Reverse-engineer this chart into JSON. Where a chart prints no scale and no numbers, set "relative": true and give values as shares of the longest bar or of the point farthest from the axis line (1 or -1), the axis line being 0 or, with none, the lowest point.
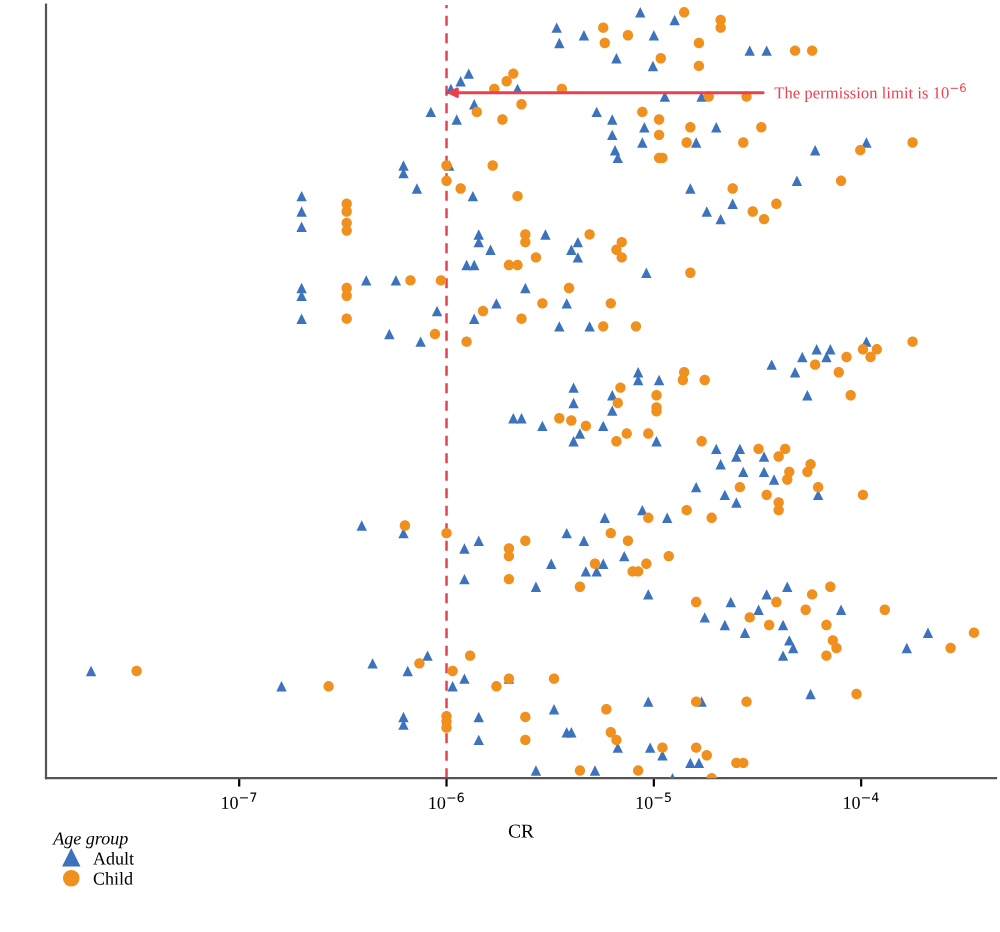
{
  "chart_data": {
    "type": "scatter",
    "xlabel": "CR",
    "legend_title": "Age group",
    "legend": "bottom left",
    "log": "x",
    "relative": true,
    "tick_labels": "x",
    "grid": false,
    "xlim": [
      1.17e-08,
      0.000447
    ],
    "xticks": [
      {
        "value": 1e-07,
        "label": "10$^{−7}$"
      },
      {
        "value": 1e-06,
        "label": "10$^{−6}$"
      },
      {
        "value": 1e-05,
        "label": "10$^{−5}$"
      },
      {
        "value": 0.0001,
        "label": "10$^{−4}$"
      }
    ],
    "ref_lines": [
      {
        "axis": "x",
        "value": 1e-06,
        "color": "#e8424f",
        "line_style": "dashed"
      }
    ],
    "annotations": [
      {
        "text": "The permission limit is 10$^{−6}$",
        "x": 1e-06,
        "y": 0.895
      }
    ],
    "series": [
      {
        "name": "Adult",
        "color": "#3d73bd",
        "marker": "triangle",
        "x": [
          8.6e-06,
          1.26e-05,
          3.4e-06,
          4.6e-06,
          3.5e-06,
          1e-05,
          6.6e-06,
          9.9e-06,
          2.9e-05,
          3.5e-05,
          1.17e-06,
          1.28e-06,
          1.05e-06,
          2.2e-06,
          8.4e-07,
          1.36e-06,
          1.12e-06,
          1.13e-05,
          1.7e-05,
          5.3e-06,
          6.3e-06,
          9e-06,
          6.3e-06,
          8.8e-06,
          1.6e-05,
          2e-05,
          6.5e-06,
          6.7e-06,
          6e-05,
          0.000106,
          6.2e-07,
          6.2e-07,
          7.2e-07,
          1.03e-06,
          1.34e-06,
          1.5e-05,
          1.8e-05,
          2.4e-05,
          2.1e-05,
          4.9e-05,
          2e-07,
          2e-07,
          2e-07,
          1.43e-06,
          1.43e-06,
          1.63e-06,
          1.25e-06,
          1.36e-06,
          3e-06,
          4e-06,
          4.3e-06,
          4.3e-06,
          9.2e-06,
          2e-07,
          2e-07,
          2e-07,
          4.1e-07,
          5.7e-07,
          2.4e-06,
          1.74e-06,
          3.8e-06,
          1.36e-06,
          9e-07,
          5.3e-07,
          7.5e-07,
          3.5e-06,
          4.9e-06,
          3.7e-05,
          4.8e-05,
          5.2e-05,
          6.1e-05,
          6.8e-05,
          7.1e-05,
          0.000106,
          8.4e-06,
          1.06e-05,
          8.4e-06,
          4.1e-06,
          4.1e-06,
          6.3e-06,
          6.3e-06,
          2.1e-06,
          2.3e-06,
          2.9e-06,
          4.1e-06,
          4.4e-06,
          5.7e-06,
          1.03e-05,
          5.5e-05,
          2e-05,
          2.6e-05,
          2.1e-05,
          2.5e-05,
          3.4e-05,
          2.7e-05,
          3.4e-05,
          1.6e-05,
          2.2e-05,
          3.8e-05,
          2.5e-05,
          6.2e-05,
          3.9e-07,
          6.2e-07,
          1.43e-06,
          1.22e-06,
          1.22e-06,
          2.7e-06,
          3.8e-06,
          4.6e-06,
          5.8e-06,
          3.2e-06,
          4.7e-06,
          5.3e-06,
          5.7e-06,
          7.2e-06,
          8.8e-06,
          1.16e-05,
          9.4e-06,
          1.76e-05,
          2.2e-05,
          2.35e-05,
          2.75e-05,
          3.2e-05,
          3.5e-05,
          4.4e-05,
          4.2e-05,
          4.5e-05,
          4.7e-05,
          4.2e-05,
          8e-05,
          0.000166,
          0.00021,
          1.93e-08,
          1.6e-07,
          4.4e-07,
          6.5e-07,
          8.1e-07,
          1.07e-06,
          1.22e-06,
          2e-06,
          1.43e-06,
          3.3e-06,
          9.4e-06,
          1.7e-05,
          5.7e-05,
          6.2e-07,
          6.2e-07,
          1.43e-06,
          3.8e-06,
          4e-06,
          6.7e-06,
          9.6e-06,
          1.1e-05,
          1.5e-05,
          1.65e-05,
          2.7e-06,
          5.2e-06,
          1.23e-05
        ],
        "values": [
          1.0,
          0.99,
          0.98,
          0.97,
          0.96,
          0.97,
          0.94,
          0.93,
          0.95,
          0.95,
          0.91,
          0.92,
          0.9,
          0.9,
          0.87,
          0.88,
          0.86,
          0.89,
          0.89,
          0.87,
          0.86,
          0.85,
          0.84,
          0.83,
          0.83,
          0.85,
          0.82,
          0.81,
          0.82,
          0.83,
          0.8,
          0.79,
          0.77,
          0.8,
          0.76,
          0.77,
          0.74,
          0.75,
          0.73,
          0.78,
          0.76,
          0.74,
          0.72,
          0.71,
          0.7,
          0.69,
          0.67,
          0.67,
          0.71,
          0.69,
          0.7,
          0.68,
          0.66,
          0.64,
          0.63,
          0.6,
          0.65,
          0.65,
          0.64,
          0.62,
          0.62,
          0.6,
          0.61,
          0.58,
          0.57,
          0.59,
          0.59,
          0.54,
          0.53,
          0.55,
          0.56,
          0.55,
          0.56,
          0.57,
          0.53,
          0.52,
          0.52,
          0.51,
          0.49,
          0.5,
          0.48,
          0.47,
          0.47,
          0.46,
          0.44,
          0.45,
          0.46,
          0.44,
          0.5,
          0.43,
          0.43,
          0.41,
          0.42,
          0.42,
          0.4,
          0.4,
          0.38,
          0.37,
          0.39,
          0.36,
          0.37,
          0.33,
          0.32,
          0.31,
          0.3,
          0.26,
          0.25,
          0.32,
          0.31,
          0.34,
          0.28,
          0.27,
          0.27,
          0.28,
          0.29,
          0.35,
          0.34,
          0.24,
          0.21,
          0.2,
          0.23,
          0.19,
          0.22,
          0.24,
          0.25,
          0.2,
          0.18,
          0.17,
          0.16,
          0.22,
          0.17,
          0.19,
          0.14,
          0.12,
          0.15,
          0.14,
          0.16,
          0.12,
          0.13,
          0.13,
          0.08,
          0.09,
          0.1,
          0.1,
          0.11,
          0.08,
          0.07,
          0.05,
          0.06,
          0.06,
          0.04,
          0.04,
          0.03,
          0.02,
          0.02,
          0.01,
          0.01,
          0.0
        ]
      },
      {
        "name": "Child",
        "color": "#f0901e",
        "marker": "circle",
        "x": [
          1.4e-05,
          2.1e-05,
          2.1e-05,
          5.7e-06,
          7.5e-06,
          1.65e-05,
          5.8e-06,
          1.08e-05,
          1.65e-05,
          4.8e-05,
          5.8e-05,
          1.95e-06,
          2.1e-06,
          1.7e-06,
          3.6e-06,
          1.4e-06,
          2.3e-06,
          1.86e-06,
          1.84e-05,
          2.8e-05,
          8.8e-06,
          1.06e-05,
          1.5e-05,
          1.44e-05,
          1.06e-05,
          1.06e-05,
          1.1e-05,
          3.3e-05,
          2.7e-05,
          9.9e-05,
          0.000177,
          1e-06,
          1e-06,
          1.17e-06,
          1.67e-06,
          2.2e-06,
          2.4e-05,
          3e-05,
          3.4e-05,
          3.9e-05,
          8e-05,
          3.3e-07,
          3.3e-07,
          3.3e-07,
          3.3e-07,
          2.4e-06,
          2.4e-06,
          2.7e-06,
          2e-06,
          2.2e-06,
          4.9e-06,
          6.6e-06,
          7e-06,
          7e-06,
          1.5e-05,
          3.3e-07,
          3.3e-07,
          3.3e-07,
          6.7e-07,
          9.4e-07,
          3.9e-06,
          2.9e-06,
          6.2e-06,
          2.3e-06,
          1.5e-06,
          8.8e-07,
          1.25e-06,
          5.7e-06,
          8.2e-06,
          6e-05,
          7.8e-05,
          8.5e-05,
          0.000102,
          0.000111,
          0.000119,
          0.000177,
          1.4e-05,
          1.76e-05,
          1.38e-05,
          6.9e-06,
          6.7e-06,
          1.03e-05,
          1.03e-05,
          1.03e-05,
          3.5e-06,
          4e-06,
          4.7e-06,
          6.6e-06,
          7.4e-06,
          9.4e-06,
          8.9e-05,
          1.7e-05,
          3.2e-05,
          4e-05,
          4.3e-05,
          5.7e-05,
          5.5e-05,
          4.4e-05,
          4.5e-05,
          6.2e-05,
          2.6e-05,
          3.5e-05,
          4e-05,
          4e-05,
          0.000102,
          6.3e-07,
          1e-06,
          2.4e-06,
          2e-06,
          2e-06,
          2e-06,
          4.4e-06,
          6.2e-06,
          7.5e-06,
          5.2e-06,
          7.9e-06,
          8.4e-06,
          9.2e-06,
          1.18e-05,
          9.4e-06,
          1.44e-05,
          1.9e-05,
          1.6e-05,
          2.9e-05,
          3.6e-05,
          3.9e-05,
          5.4e-05,
          5.8e-05,
          7.1e-05,
          6.8e-05,
          7.3e-05,
          7.6e-05,
          6.8e-05,
          0.00013,
          0.00027,
          0.00035,
          3.2e-08,
          2.7e-07,
          7.4e-07,
          1.07e-06,
          1.3e-06,
          1.74e-06,
          2e-06,
          3.3e-06,
          2.4e-06,
          5.9e-06,
          1.6e-05,
          2.8e-05,
          9.5e-05,
          1e-06,
          1e-06,
          1e-06,
          2.4e-06,
          6.2e-06,
          6.6e-06,
          1.1e-05,
          1.6e-05,
          1.8e-05,
          2.5e-05,
          2.7e-05,
          4.4e-06,
          8.4e-06,
          1.9e-05
        ],
        "values": [
          1.0,
          0.99,
          0.98,
          0.98,
          0.97,
          0.96,
          0.96,
          0.94,
          0.93,
          0.95,
          0.95,
          0.91,
          0.92,
          0.9,
          0.9,
          0.87,
          0.88,
          0.86,
          0.89,
          0.89,
          0.87,
          0.86,
          0.85,
          0.83,
          0.84,
          0.81,
          0.81,
          0.85,
          0.83,
          0.82,
          0.83,
          0.8,
          0.78,
          0.77,
          0.8,
          0.76,
          0.77,
          0.74,
          0.73,
          0.75,
          0.78,
          0.75,
          0.74,
          0.725,
          0.715,
          0.71,
          0.7,
          0.68,
          0.67,
          0.67,
          0.71,
          0.69,
          0.7,
          0.68,
          0.66,
          0.64,
          0.63,
          0.6,
          0.65,
          0.65,
          0.64,
          0.62,
          0.62,
          0.6,
          0.61,
          0.58,
          0.57,
          0.59,
          0.59,
          0.54,
          0.53,
          0.55,
          0.56,
          0.55,
          0.56,
          0.57,
          0.53,
          0.52,
          0.52,
          0.51,
          0.49,
          0.5,
          0.484,
          0.479,
          0.47,
          0.467,
          0.46,
          0.44,
          0.45,
          0.45,
          0.5,
          0.44,
          0.43,
          0.42,
          0.43,
          0.41,
          0.4,
          0.39,
          0.4,
          0.38,
          0.38,
          0.37,
          0.36,
          0.35,
          0.37,
          0.33,
          0.32,
          0.31,
          0.3,
          0.29,
          0.26,
          0.25,
          0.32,
          0.31,
          0.28,
          0.27,
          0.27,
          0.28,
          0.29,
          0.34,
          0.35,
          0.34,
          0.23,
          0.21,
          0.2,
          0.23,
          0.22,
          0.24,
          0.25,
          0.2,
          0.18,
          0.17,
          0.16,
          0.22,
          0.17,
          0.19,
          0.14,
          0.12,
          0.15,
          0.14,
          0.16,
          0.12,
          0.13,
          0.13,
          0.08,
          0.09,
          0.1,
          0.1,
          0.11,
          0.081,
          0.074,
          0.066,
          0.05,
          0.06,
          0.05,
          0.04,
          0.04,
          0.03,
          0.02,
          0.02,
          0.01,
          0.01,
          0.0
        ]
      }
    ]
  }
}
